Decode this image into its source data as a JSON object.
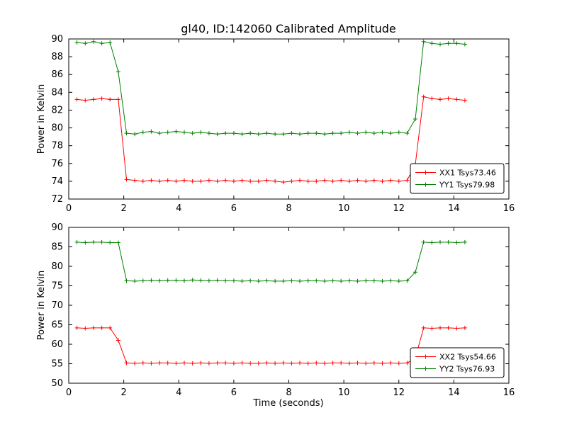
{
  "title": "gl40, ID:142060 Calibrated Amplitude",
  "colors": {
    "red": "#ff0000",
    "green": "#008000",
    "axis": "#000000",
    "background": "#ffffff"
  },
  "chart_data": [
    {
      "type": "line",
      "title": "",
      "xlabel": "",
      "ylabel": "Power in Kelvin",
      "xlim": [
        0,
        16
      ],
      "ylim": [
        72,
        90
      ],
      "xticks": [
        0,
        2,
        4,
        6,
        8,
        10,
        12,
        14,
        16
      ],
      "yticks": [
        72,
        74,
        76,
        78,
        80,
        82,
        84,
        86,
        88,
        90
      ],
      "grid": false,
      "legend_position": "lower right",
      "marker": "plus",
      "series": [
        {
          "name": "XX1 Tsys73.46",
          "color": "#ff0000",
          "x": [
            0.3,
            0.6,
            0.9,
            1.2,
            1.5,
            1.8,
            2.1,
            2.4,
            2.7,
            3.0,
            3.3,
            3.6,
            3.9,
            4.2,
            4.5,
            4.8,
            5.1,
            5.4,
            5.7,
            6.0,
            6.3,
            6.6,
            6.9,
            7.2,
            7.5,
            7.8,
            8.1,
            8.4,
            8.7,
            9.0,
            9.3,
            9.6,
            9.9,
            10.2,
            10.5,
            10.8,
            11.1,
            11.4,
            11.7,
            12.0,
            12.3,
            12.6,
            12.9,
            13.2,
            13.5,
            13.8,
            14.1,
            14.4
          ],
          "y": [
            83.2,
            83.1,
            83.2,
            83.3,
            83.2,
            83.2,
            74.2,
            74.1,
            74.0,
            74.1,
            74.0,
            74.1,
            74.0,
            74.1,
            74.0,
            74.0,
            74.1,
            74.0,
            74.1,
            74.0,
            74.1,
            74.0,
            74.0,
            74.1,
            74.0,
            73.9,
            74.0,
            74.1,
            74.0,
            74.0,
            74.1,
            74.0,
            74.1,
            74.0,
            74.1,
            74.0,
            74.1,
            74.0,
            74.1,
            74.0,
            74.1,
            75.9,
            83.5,
            83.3,
            83.2,
            83.3,
            83.2,
            83.1
          ]
        },
        {
          "name": "YY1 Tsys79.98",
          "color": "#008000",
          "x": [
            0.3,
            0.6,
            0.9,
            1.2,
            1.5,
            1.8,
            2.1,
            2.4,
            2.7,
            3.0,
            3.3,
            3.6,
            3.9,
            4.2,
            4.5,
            4.8,
            5.1,
            5.4,
            5.7,
            6.0,
            6.3,
            6.6,
            6.9,
            7.2,
            7.5,
            7.8,
            8.1,
            8.4,
            8.7,
            9.0,
            9.3,
            9.6,
            9.9,
            10.2,
            10.5,
            10.8,
            11.1,
            11.4,
            11.7,
            12.0,
            12.3,
            12.6,
            12.9,
            13.2,
            13.5,
            13.8,
            14.1,
            14.4
          ],
          "y": [
            89.6,
            89.5,
            89.7,
            89.5,
            89.6,
            86.3,
            79.4,
            79.3,
            79.5,
            79.6,
            79.4,
            79.5,
            79.6,
            79.5,
            79.4,
            79.5,
            79.4,
            79.3,
            79.4,
            79.4,
            79.3,
            79.4,
            79.3,
            79.4,
            79.3,
            79.3,
            79.4,
            79.3,
            79.4,
            79.4,
            79.3,
            79.4,
            79.4,
            79.5,
            79.4,
            79.5,
            79.4,
            79.5,
            79.4,
            79.5,
            79.4,
            81.0,
            89.7,
            89.5,
            89.4,
            89.5,
            89.5,
            89.4
          ]
        }
      ]
    },
    {
      "type": "line",
      "title": "",
      "xlabel": "Time (seconds)",
      "ylabel": "Power in Kelvin",
      "xlim": [
        0,
        16
      ],
      "ylim": [
        50,
        90
      ],
      "xticks": [
        0,
        2,
        4,
        6,
        8,
        10,
        12,
        14,
        16
      ],
      "yticks": [
        50,
        55,
        60,
        65,
        70,
        75,
        80,
        85,
        90
      ],
      "grid": false,
      "legend_position": "lower right",
      "marker": "plus",
      "series": [
        {
          "name": "XX2 Tsys54.66",
          "color": "#ff0000",
          "x": [
            0.3,
            0.6,
            0.9,
            1.2,
            1.5,
            1.8,
            2.1,
            2.4,
            2.7,
            3.0,
            3.3,
            3.6,
            3.9,
            4.2,
            4.5,
            4.8,
            5.1,
            5.4,
            5.7,
            6.0,
            6.3,
            6.6,
            6.9,
            7.2,
            7.5,
            7.8,
            8.1,
            8.4,
            8.7,
            9.0,
            9.3,
            9.6,
            9.9,
            10.2,
            10.5,
            10.8,
            11.1,
            11.4,
            11.7,
            12.0,
            12.3,
            12.6,
            12.9,
            13.2,
            13.5,
            13.8,
            14.1,
            14.4
          ],
          "y": [
            64.2,
            64.1,
            64.2,
            64.2,
            64.2,
            61.0,
            55.2,
            55.1,
            55.2,
            55.1,
            55.2,
            55.2,
            55.1,
            55.2,
            55.1,
            55.2,
            55.1,
            55.2,
            55.2,
            55.1,
            55.2,
            55.1,
            55.1,
            55.2,
            55.1,
            55.2,
            55.1,
            55.2,
            55.1,
            55.2,
            55.1,
            55.2,
            55.2,
            55.1,
            55.2,
            55.1,
            55.2,
            55.1,
            55.2,
            55.1,
            55.2,
            56.5,
            64.2,
            64.1,
            64.2,
            64.2,
            64.1,
            64.2
          ]
        },
        {
          "name": "YY2 Tsys76.93",
          "color": "#008000",
          "x": [
            0.3,
            0.6,
            0.9,
            1.2,
            1.5,
            1.8,
            2.1,
            2.4,
            2.7,
            3.0,
            3.3,
            3.6,
            3.9,
            4.2,
            4.5,
            4.8,
            5.1,
            5.4,
            5.7,
            6.0,
            6.3,
            6.6,
            6.9,
            7.2,
            7.5,
            7.8,
            8.1,
            8.4,
            8.7,
            9.0,
            9.3,
            9.6,
            9.9,
            10.2,
            10.5,
            10.8,
            11.1,
            11.4,
            11.7,
            12.0,
            12.3,
            12.6,
            12.9,
            13.2,
            13.5,
            13.8,
            14.1,
            14.4
          ],
          "y": [
            86.2,
            86.1,
            86.2,
            86.2,
            86.1,
            86.1,
            76.3,
            76.2,
            76.3,
            76.4,
            76.3,
            76.4,
            76.4,
            76.3,
            76.5,
            76.4,
            76.3,
            76.4,
            76.3,
            76.3,
            76.2,
            76.3,
            76.2,
            76.3,
            76.2,
            76.2,
            76.3,
            76.2,
            76.3,
            76.3,
            76.2,
            76.3,
            76.2,
            76.3,
            76.2,
            76.3,
            76.3,
            76.2,
            76.3,
            76.2,
            76.3,
            78.5,
            86.2,
            86.1,
            86.2,
            86.2,
            86.1,
            86.2
          ]
        }
      ]
    }
  ]
}
